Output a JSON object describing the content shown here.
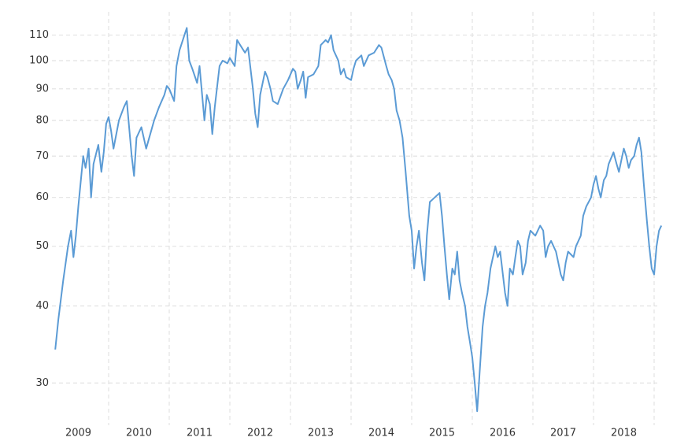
{
  "chart_data": {
    "type": "line",
    "x": [
      2009.12,
      2009.17,
      2009.25,
      2009.33,
      2009.38,
      2009.42,
      2009.46,
      2009.5,
      2009.58,
      2009.62,
      2009.67,
      2009.71,
      2009.75,
      2009.83,
      2009.88,
      2009.92,
      2009.96,
      2010.0,
      2010.04,
      2010.08,
      2010.17,
      2010.25,
      2010.3,
      2010.38,
      2010.42,
      2010.46,
      2010.54,
      2010.62,
      2010.67,
      2010.75,
      2010.83,
      2010.92,
      2010.96,
      2011.0,
      2011.08,
      2011.12,
      2011.17,
      2011.25,
      2011.29,
      2011.33,
      2011.38,
      2011.46,
      2011.5,
      2011.58,
      2011.62,
      2011.67,
      2011.71,
      2011.75,
      2011.83,
      2011.88,
      2011.96,
      2012.0,
      2012.08,
      2012.12,
      2012.17,
      2012.25,
      2012.3,
      2012.38,
      2012.42,
      2012.46,
      2012.5,
      2012.58,
      2012.62,
      2012.67,
      2012.71,
      2012.79,
      2012.88,
      2012.96,
      2013.04,
      2013.08,
      2013.12,
      2013.17,
      2013.21,
      2013.25,
      2013.29,
      2013.38,
      2013.46,
      2013.5,
      2013.58,
      2013.62,
      2013.67,
      2013.71,
      2013.79,
      2013.83,
      2013.88,
      2013.92,
      2014.0,
      2014.04,
      2014.08,
      2014.17,
      2014.21,
      2014.29,
      2014.38,
      2014.46,
      2014.5,
      2014.58,
      2014.62,
      2014.67,
      2014.71,
      2014.75,
      2014.8,
      2014.85,
      2014.9,
      2014.96,
      2015.0,
      2015.04,
      2015.08,
      2015.12,
      2015.17,
      2015.21,
      2015.25,
      2015.3,
      2015.38,
      2015.46,
      2015.5,
      2015.54,
      2015.58,
      2015.62,
      2015.67,
      2015.71,
      2015.75,
      2015.79,
      2015.83,
      2015.88,
      2015.92,
      2015.96,
      2016.0,
      2016.04,
      2016.08,
      2016.12,
      2016.17,
      2016.21,
      2016.25,
      2016.3,
      2016.38,
      2016.42,
      2016.46,
      2016.54,
      2016.58,
      2016.62,
      2016.67,
      2016.71,
      2016.75,
      2016.79,
      2016.83,
      2016.88,
      2016.92,
      2016.96,
      2017.04,
      2017.12,
      2017.17,
      2017.21,
      2017.25,
      2017.3,
      2017.38,
      2017.46,
      2017.5,
      2017.54,
      2017.58,
      2017.67,
      2017.71,
      2017.75,
      2017.79,
      2017.83,
      2017.88,
      2017.96,
      2018.0,
      2018.04,
      2018.08,
      2018.12,
      2018.17,
      2018.21,
      2018.25,
      2018.33,
      2018.38,
      2018.42,
      2018.46,
      2018.5,
      2018.54,
      2018.58,
      2018.62,
      2018.67,
      2018.71,
      2018.75,
      2018.79,
      2018.83,
      2018.88,
      2018.92,
      2018.96,
      2019.0,
      2019.04,
      2019.08,
      2019.12
    ],
    "values": [
      34,
      38,
      44,
      50,
      53,
      48,
      52,
      58,
      70,
      67,
      72,
      60,
      68,
      73,
      66,
      71,
      79,
      81,
      77,
      72,
      80,
      84,
      86,
      70,
      65,
      75,
      78,
      72,
      75,
      80,
      84,
      88,
      91,
      90,
      86,
      98,
      104,
      110,
      113,
      100,
      97,
      92,
      98,
      80,
      88,
      85,
      76,
      84,
      98,
      100,
      99,
      101,
      98,
      108,
      106,
      103,
      105,
      90,
      82,
      78,
      88,
      96,
      94,
      90,
      86,
      85,
      90,
      93,
      97,
      96,
      90,
      93,
      96,
      87,
      94,
      95,
      98,
      106,
      108,
      107,
      110,
      104,
      100,
      95,
      97,
      94,
      93,
      97,
      100,
      102,
      98,
      102,
      103,
      106,
      105,
      98,
      95,
      93,
      90,
      83,
      80,
      75,
      66,
      56,
      53,
      46,
      50,
      53,
      47,
      44,
      52,
      59,
      60,
      61,
      56,
      50,
      45,
      41,
      46,
      45,
      49,
      44,
      42,
      40,
      37,
      35,
      33,
      30,
      27,
      31,
      37,
      40,
      42,
      46,
      50,
      48,
      49,
      42,
      40,
      46,
      45,
      48,
      51,
      50,
      45,
      47,
      51,
      53,
      52,
      54,
      53,
      48,
      50,
      51,
      49,
      45,
      44,
      47,
      49,
      48,
      50,
      51,
      52,
      56,
      58,
      60,
      63,
      65,
      62,
      60,
      64,
      65,
      68,
      71,
      68,
      66,
      69,
      72,
      70,
      67,
      69,
      70,
      73,
      75,
      71,
      63,
      55,
      50,
      46,
      45,
      50,
      53,
      54
    ],
    "color": "#5b9bd5",
    "xlim": [
      2009,
      2019.1
    ],
    "xticks": [
      2009,
      2010,
      2011,
      2012,
      2013,
      2014,
      2015,
      2016,
      2017,
      2018
    ],
    "ylim": [
      26,
      120
    ],
    "yticks": [
      30,
      40,
      50,
      60,
      70,
      80,
      90,
      100,
      110
    ],
    "yscale": "log",
    "grid": true
  }
}
